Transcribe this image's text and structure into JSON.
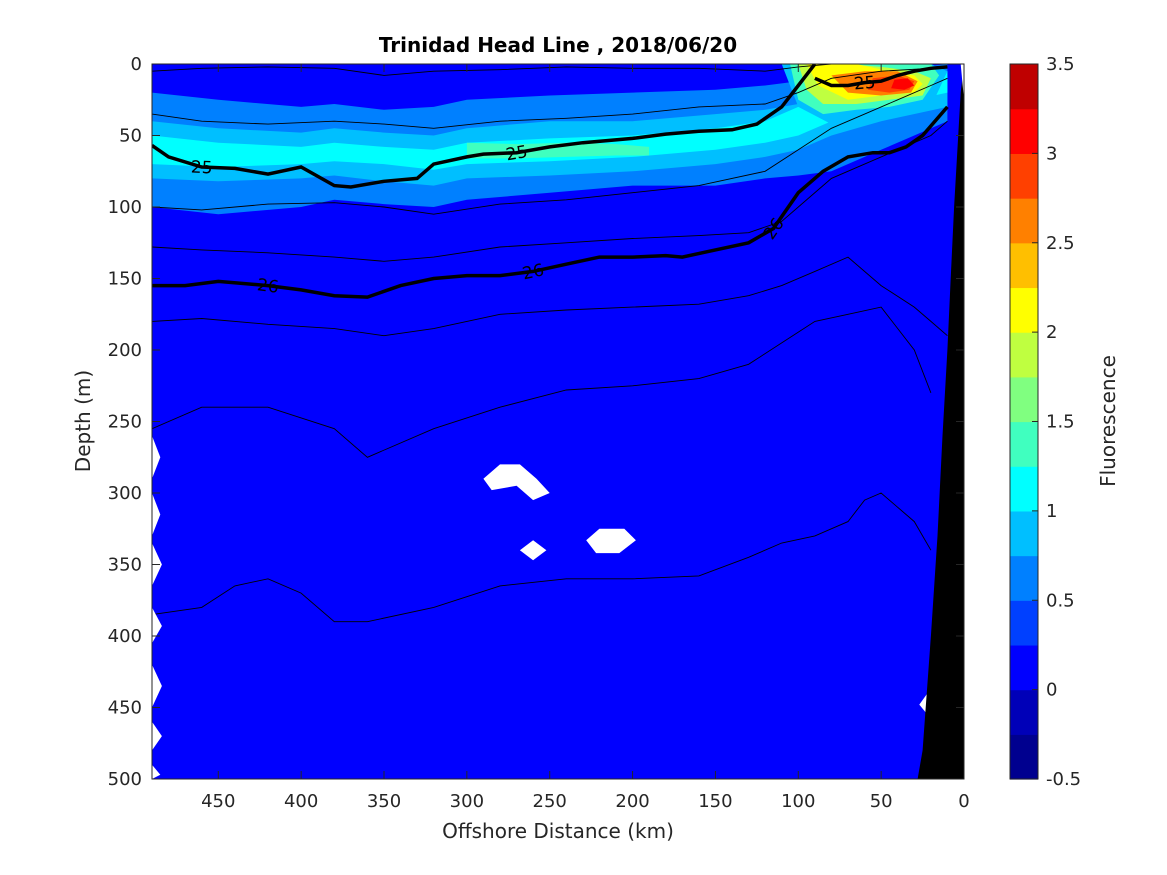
{
  "chart_data": {
    "type": "contourf",
    "title": "Trinidad Head Line , 2018/06/20",
    "xlabel": "Offshore Distance (km)",
    "ylabel": "Depth (m)",
    "colorbar_label": "Fluorescence",
    "xlim": [
      490,
      0
    ],
    "ylim": [
      500,
      0
    ],
    "xticks": [
      450,
      400,
      350,
      300,
      250,
      200,
      150,
      100,
      50,
      0
    ],
    "yticks": [
      0,
      50,
      100,
      150,
      200,
      250,
      300,
      350,
      400,
      450,
      500
    ],
    "clim": [
      -0.5,
      3.5
    ],
    "colorbar_ticks": [
      3.5,
      3,
      2.5,
      2,
      1.5,
      1,
      0.5,
      0,
      -0.5
    ],
    "colormap_levels": [
      "#00008f",
      "#0000b8",
      "#0000ff",
      "#0040ff",
      "#0080ff",
      "#00bfff",
      "#00ffff",
      "#40ffbf",
      "#80ff80",
      "#bfff40",
      "#ffff00",
      "#ffbf00",
      "#ff8000",
      "#ff4000",
      "#ff0000",
      "#bf0000"
    ],
    "background_value": 0.1,
    "fluorescence_bands": [
      {
        "value": 0.55,
        "depth_top": [
          20,
          25,
          30,
          28,
          32,
          30,
          25,
          22,
          20,
          18,
          15,
          12,
          10,
          5,
          0
        ],
        "depth_bottom": [
          100,
          105,
          100,
          95,
          98,
          100,
          95,
          90,
          85,
          85,
          80,
          78,
          75,
          60,
          40
        ],
        "x": [
          490,
          450,
          400,
          380,
          350,
          320,
          300,
          250,
          200,
          150,
          120,
          100,
          80,
          50,
          10
        ]
      },
      {
        "value": 0.8,
        "depth_top": [
          40,
          45,
          48,
          45,
          48,
          50,
          45,
          40,
          40,
          35,
          32,
          28,
          20,
          10,
          5
        ],
        "depth_bottom": [
          80,
          82,
          80,
          78,
          82,
          85,
          80,
          78,
          75,
          70,
          65,
          60,
          50,
          40,
          30
        ],
        "x": [
          490,
          450,
          400,
          380,
          350,
          320,
          300,
          250,
          200,
          150,
          120,
          100,
          80,
          50,
          10
        ]
      },
      {
        "value": 1.1,
        "depth_top": [
          50,
          55,
          58,
          55,
          58,
          60,
          55,
          52,
          50,
          45,
          40,
          30,
          20,
          10,
          5
        ],
        "depth_bottom": [
          70,
          72,
          70,
          68,
          70,
          74,
          70,
          68,
          65,
          60,
          55,
          50,
          40,
          30,
          20
        ],
        "x": [
          490,
          450,
          400,
          380,
          350,
          320,
          300,
          250,
          200,
          150,
          120,
          100,
          80,
          50,
          10
        ]
      },
      {
        "value": 1.35,
        "x": [
          300,
          270,
          240,
          210,
          190
        ],
        "depth_top": [
          55,
          56,
          55,
          56,
          58
        ],
        "depth_bottom": [
          66,
          66,
          65,
          64,
          64
        ]
      }
    ],
    "hotspot": [
      {
        "value": 0.8,
        "x": [
          110,
          100,
          80,
          60,
          40,
          20,
          10,
          20,
          40,
          60,
          80,
          100
        ],
        "depth": [
          0,
          0,
          0,
          0,
          0,
          0,
          5,
          30,
          35,
          40,
          42,
          30
        ]
      },
      {
        "value": 1.35,
        "x": [
          105,
          95,
          80,
          60,
          40,
          20,
          15,
          25,
          45,
          65,
          85,
          100
        ],
        "depth": [
          0,
          0,
          0,
          0,
          0,
          0,
          8,
          25,
          30,
          32,
          35,
          25
        ]
      },
      {
        "value": 1.75,
        "x": [
          100,
          90,
          70,
          50,
          30,
          20,
          25,
          45,
          65,
          85,
          95
        ],
        "depth": [
          0,
          0,
          0,
          2,
          5,
          10,
          22,
          25,
          28,
          28,
          18
        ]
      },
      {
        "value": 2.2,
        "x": [
          95,
          85,
          65,
          45,
          30,
          25,
          30,
          50,
          70,
          88
        ],
        "depth": [
          0,
          0,
          0,
          5,
          8,
          14,
          20,
          22,
          25,
          15
        ]
      },
      {
        "value": 2.6,
        "x": [
          80,
          60,
          40,
          28,
          32,
          50,
          70
        ],
        "depth": [
          8,
          5,
          5,
          12,
          20,
          22,
          20
        ]
      },
      {
        "value": 2.9,
        "x": [
          55,
          40,
          30,
          33,
          45,
          58
        ],
        "depth": [
          10,
          8,
          12,
          18,
          20,
          18
        ]
      },
      {
        "value": 3.2,
        "x": [
          42,
          34,
          30,
          36,
          44
        ],
        "depth": [
          11,
          10,
          15,
          18,
          17
        ]
      }
    ],
    "isopycnals": [
      {
        "label": "25",
        "bold": true,
        "x": [
          490,
          480,
          460,
          440,
          420,
          400,
          380,
          370,
          350,
          330,
          320,
          300,
          290,
          270,
          250,
          230,
          200,
          180,
          160,
          140,
          125,
          110,
          100,
          90
        ],
        "depth": [
          57,
          65,
          72,
          73,
          77,
          72,
          85,
          86,
          82,
          80,
          70,
          65,
          63,
          62,
          58,
          55,
          52,
          49,
          47,
          46,
          42,
          30,
          15,
          0
        ]
      },
      {
        "label": "25",
        "bold": true,
        "x": [
          90,
          80,
          70,
          60,
          50,
          40,
          30,
          20,
          10
        ],
        "depth": [
          10,
          15,
          15,
          13,
          12,
          8,
          5,
          3,
          2
        ]
      },
      {
        "label": "26",
        "bold": true,
        "x": [
          490,
          470,
          450,
          420,
          400,
          380,
          360,
          340,
          320,
          300,
          280,
          260,
          240,
          220,
          200,
          180,
          170,
          150,
          130,
          115,
          100,
          85,
          70,
          55,
          45,
          35,
          25,
          10
        ],
        "depth": [
          155,
          155,
          152,
          155,
          158,
          162,
          163,
          155,
          150,
          148,
          148,
          145,
          140,
          135,
          135,
          134,
          135,
          130,
          125,
          115,
          90,
          75,
          65,
          62,
          62,
          58,
          50,
          30
        ]
      }
    ],
    "isopycnals_thin": [
      {
        "x": [
          490,
          460,
          420,
          380,
          350,
          320,
          280,
          240,
          200,
          160,
          120,
          100,
          80,
          50,
          20,
          10
        ],
        "depth": [
          5,
          3,
          2,
          3,
          8,
          5,
          4,
          2,
          3,
          3,
          5,
          2,
          0,
          0,
          0,
          0
        ]
      },
      {
        "x": [
          490,
          460,
          420,
          380,
          350,
          320,
          280,
          240,
          200,
          160,
          120,
          100,
          80,
          50,
          20,
          10
        ],
        "depth": [
          35,
          40,
          42,
          40,
          42,
          45,
          40,
          38,
          35,
          30,
          28,
          20,
          10,
          5,
          3,
          2
        ]
      },
      {
        "x": [
          490,
          460,
          420,
          380,
          350,
          320,
          280,
          240,
          200,
          160,
          120,
          100,
          80,
          60,
          40,
          20,
          10
        ],
        "depth": [
          100,
          102,
          98,
          97,
          100,
          105,
          98,
          95,
          90,
          85,
          75,
          60,
          45,
          35,
          25,
          15,
          10
        ]
      },
      {
        "x": [
          490,
          460,
          420,
          380,
          350,
          320,
          280,
          240,
          200,
          160,
          130,
          110,
          100,
          80,
          60,
          40,
          20,
          10
        ],
        "depth": [
          128,
          130,
          132,
          135,
          138,
          135,
          128,
          125,
          122,
          120,
          118,
          110,
          100,
          80,
          70,
          60,
          50,
          40
        ]
      },
      {
        "x": [
          490,
          460,
          420,
          380,
          350,
          320,
          280,
          240,
          200,
          160,
          130,
          110,
          90,
          70,
          50,
          30,
          20,
          10
        ],
        "depth": [
          180,
          178,
          182,
          185,
          190,
          185,
          175,
          172,
          170,
          168,
          162,
          155,
          145,
          135,
          155,
          170,
          180,
          190
        ]
      },
      {
        "x": [
          490,
          460,
          420,
          380,
          360,
          320,
          280,
          240,
          200,
          160,
          130,
          110,
          90,
          70,
          50,
          30,
          20
        ],
        "depth": [
          255,
          240,
          240,
          255,
          275,
          255,
          240,
          228,
          225,
          220,
          210,
          195,
          180,
          175,
          170,
          200,
          230
        ]
      },
      {
        "x": [
          490,
          460,
          440,
          420,
          400,
          380,
          360,
          320,
          280,
          240,
          200,
          160,
          130,
          110,
          90,
          70,
          60,
          50,
          40,
          30,
          20
        ],
        "depth": [
          385,
          380,
          365,
          360,
          370,
          390,
          390,
          380,
          365,
          360,
          360,
          358,
          345,
          335,
          330,
          320,
          305,
          300,
          310,
          320,
          340
        ]
      }
    ],
    "missing_regions": [
      {
        "x": [
          490,
          485,
          490
        ],
        "depth": [
          260,
          275,
          290
        ]
      },
      {
        "x": [
          490,
          485,
          490
        ],
        "depth": [
          300,
          315,
          330
        ]
      },
      {
        "x": [
          490,
          484,
          490
        ],
        "depth": [
          335,
          350,
          365
        ]
      },
      {
        "x": [
          490,
          484,
          490
        ],
        "depth": [
          380,
          393,
          405
        ]
      },
      {
        "x": [
          490,
          484,
          490
        ],
        "depth": [
          420,
          435,
          450
        ]
      },
      {
        "x": [
          490,
          484,
          490
        ],
        "depth": [
          460,
          470,
          480
        ]
      },
      {
        "x": [
          490,
          485,
          490
        ],
        "depth": [
          490,
          497,
          500
        ]
      },
      {
        "x": [
          290,
          280,
          268,
          258,
          250,
          260,
          270,
          285
        ],
        "depth": [
          290,
          280,
          280,
          290,
          300,
          305,
          295,
          298
        ]
      },
      {
        "x": [
          268,
          260,
          252,
          260
        ],
        "depth": [
          340,
          333,
          340,
          347
        ]
      },
      {
        "x": [
          228,
          220,
          205,
          198,
          208,
          222
        ],
        "depth": [
          333,
          325,
          325,
          333,
          342,
          342
        ]
      },
      {
        "x": [
          27,
          22,
          22
        ],
        "depth": [
          448,
          440,
          455
        ]
      }
    ],
    "bathymetry": {
      "x": [
        0,
        2,
        4,
        6,
        8,
        10,
        13,
        16,
        20,
        25,
        28
      ],
      "depth": [
        0,
        20,
        60,
        100,
        150,
        200,
        260,
        330,
        400,
        480,
        500
      ]
    }
  }
}
